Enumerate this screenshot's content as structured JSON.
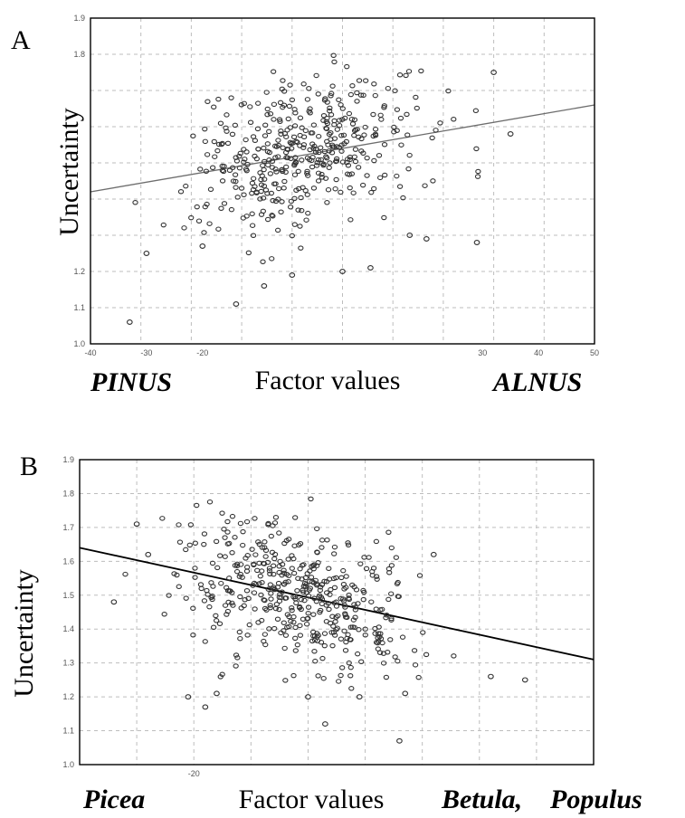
{
  "chart_data": [
    {
      "type": "scatter",
      "panel_label": "A",
      "ylabel": "Uncertainty",
      "xlabel": "Factor values",
      "x_left_taxon": "PINUS",
      "x_right_taxon": "ALNUS",
      "xlim": [
        -40,
        50
      ],
      "ylim": [
        1.0,
        1.9
      ],
      "x_ticks": [
        "-40",
        "-30",
        "-20",
        "30",
        "40",
        "50"
      ],
      "x_tick_values": [
        -40,
        -30,
        -20,
        30,
        40,
        50
      ],
      "y_ticks": [
        "1.0",
        "1.1",
        "1.2",
        "1.8",
        "1.9"
      ],
      "y_tick_values": [
        1.0,
        1.1,
        1.2,
        1.8,
        1.9
      ],
      "grid": true,
      "trend": {
        "x": [
          -40,
          50
        ],
        "y": [
          1.42,
          1.66
        ]
      },
      "n_points": 420,
      "center": [
        -2,
        1.53
      ],
      "spread": [
        10,
        0.1
      ],
      "slope": 0.0027,
      "extra_points": {
        "x": [
          -33,
          -30,
          -20,
          -14,
          -9,
          -4,
          5,
          10,
          17,
          20,
          29,
          32,
          35
        ],
        "y": [
          1.06,
          1.25,
          1.27,
          1.11,
          1.16,
          1.19,
          1.2,
          1.21,
          1.3,
          1.29,
          1.28,
          1.75,
          1.58
        ]
      }
    },
    {
      "type": "scatter",
      "panel_label": "B",
      "ylabel": "Uncertainty",
      "xlabel": "Factor values",
      "x_left_taxon": "Picea",
      "x_right_taxon": "Betula,",
      "x_right_taxon_2": "Populus",
      "xlim": [
        -40,
        50
      ],
      "ylim": [
        1.0,
        1.9
      ],
      "x_ticks": [
        "-20"
      ],
      "x_tick_values": [
        -20
      ],
      "y_ticks": [
        "1.0",
        "1.1",
        "1.2",
        "1.3",
        "1.4",
        "1.5",
        "1.6",
        "1.7",
        "1.8",
        "1.9"
      ],
      "y_tick_values": [
        1.0,
        1.1,
        1.2,
        1.3,
        1.4,
        1.5,
        1.6,
        1.7,
        1.8,
        1.9
      ],
      "grid": true,
      "trend": {
        "x": [
          -40,
          50
        ],
        "y": [
          1.64,
          1.31
        ]
      },
      "n_points": 450,
      "center": [
        -2,
        1.5
      ],
      "spread": [
        10,
        0.1
      ],
      "slope": -0.0037,
      "extra_points": {
        "x": [
          -34,
          -30,
          -28,
          -21,
          -18,
          -16,
          0,
          3,
          9,
          16,
          17,
          22,
          32,
          38
        ],
        "y": [
          1.48,
          1.71,
          1.62,
          1.2,
          1.17,
          1.21,
          1.2,
          1.12,
          1.2,
          1.07,
          1.21,
          1.62,
          1.26,
          1.25
        ]
      }
    }
  ]
}
